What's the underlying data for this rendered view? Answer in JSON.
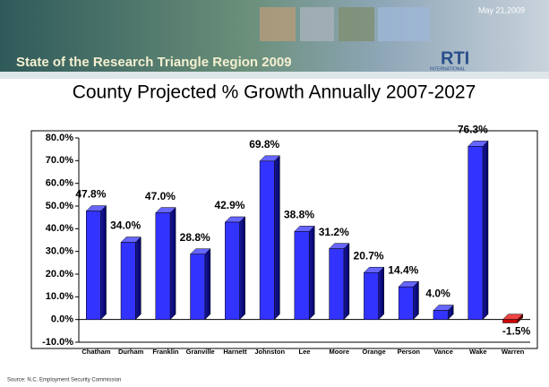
{
  "header": {
    "title": "State of the Research Triangle Region 2009",
    "date": "May 21,2009",
    "logo": "RTI",
    "logo_sub": "INTERNATIONAL"
  },
  "chart_data": {
    "type": "bar3d",
    "title": "County Projected % Growth Annually 2007-2027",
    "categories": [
      "Chatham",
      "Durham",
      "Franklin",
      "Granville",
      "Harnett",
      "Johnston",
      "Lee",
      "Moore",
      "Orange",
      "Person",
      "Vance",
      "Wake",
      "Warren"
    ],
    "values": [
      47.8,
      34.0,
      47.0,
      28.8,
      42.9,
      69.8,
      38.8,
      31.2,
      20.7,
      14.4,
      4.0,
      76.3,
      -1.5
    ],
    "value_labels": [
      "47.8%",
      "34.0%",
      "47.0%",
      "28.8%",
      "42.9%",
      "69.8%",
      "38.8%",
      "31.2%",
      "20.7%",
      "14.4%",
      "4.0%",
      "76.3%",
      "-1.5%"
    ],
    "color": "#3333ff",
    "negative_color": "#cc0000",
    "ylim": [
      -10,
      80
    ],
    "yticks": [
      {
        "value": -10,
        "label": "-10.0%"
      },
      {
        "value": 0,
        "label": "0.0%"
      },
      {
        "value": 10,
        "label": "10.0%"
      },
      {
        "value": 20,
        "label": "20.0%"
      },
      {
        "value": 30,
        "label": "30.0%"
      },
      {
        "value": 40,
        "label": "40.0%"
      },
      {
        "value": 50,
        "label": "50.0%"
      },
      {
        "value": 60,
        "label": "60.0%"
      },
      {
        "value": 70,
        "label": "70.0%"
      },
      {
        "value": 80,
        "label": "80.0%"
      }
    ]
  },
  "source": "Source: N.C. Employment Security Commission"
}
